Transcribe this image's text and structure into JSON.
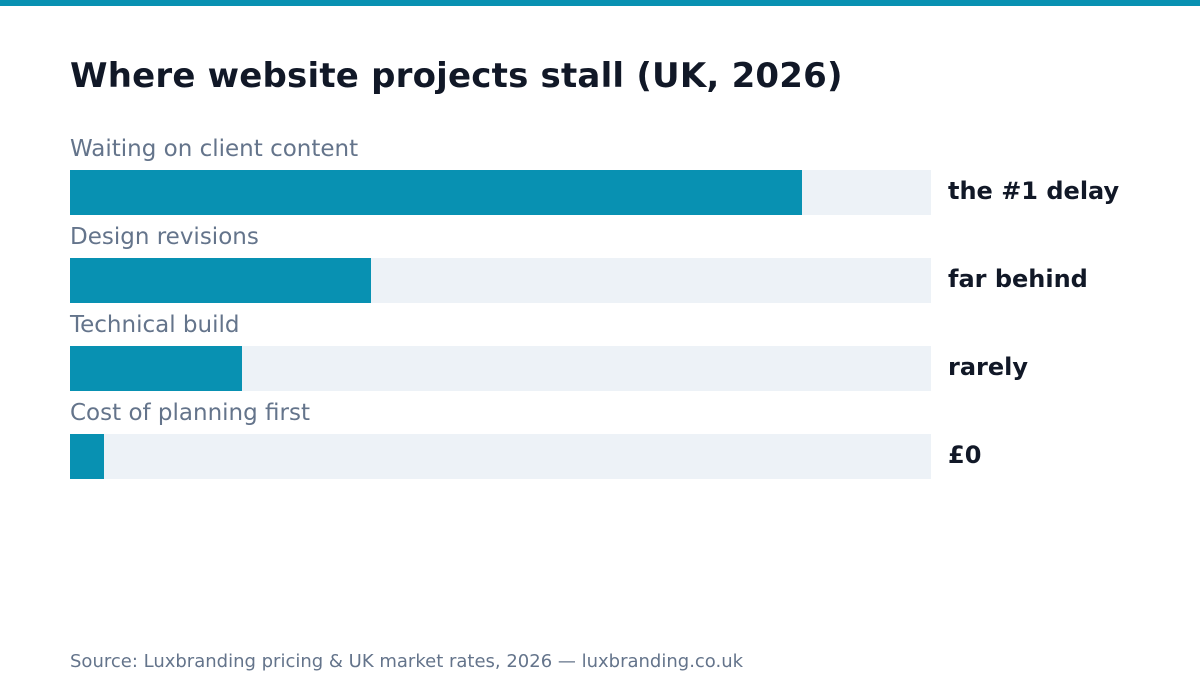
{
  "colors": {
    "accent": "#0891b2",
    "track": "#edf2f7",
    "title": "#111827",
    "muted": "#64748b"
  },
  "chart_data": {
    "type": "bar",
    "title": "Where website projects stall (UK, 2026)",
    "categories": [
      "Waiting on client content",
      "Design revisions",
      "Technical build",
      "Cost of planning first"
    ],
    "values": [
      0.85,
      0.35,
      0.2,
      0.04
    ],
    "value_labels": [
      "the #1 delay",
      "far behind",
      "rarely",
      "£0"
    ],
    "xlim": [
      0,
      1
    ],
    "grid": false,
    "orientation": "horizontal",
    "source": "Source: Luxbranding pricing & UK market rates, 2026 — luxbranding.co.uk"
  }
}
